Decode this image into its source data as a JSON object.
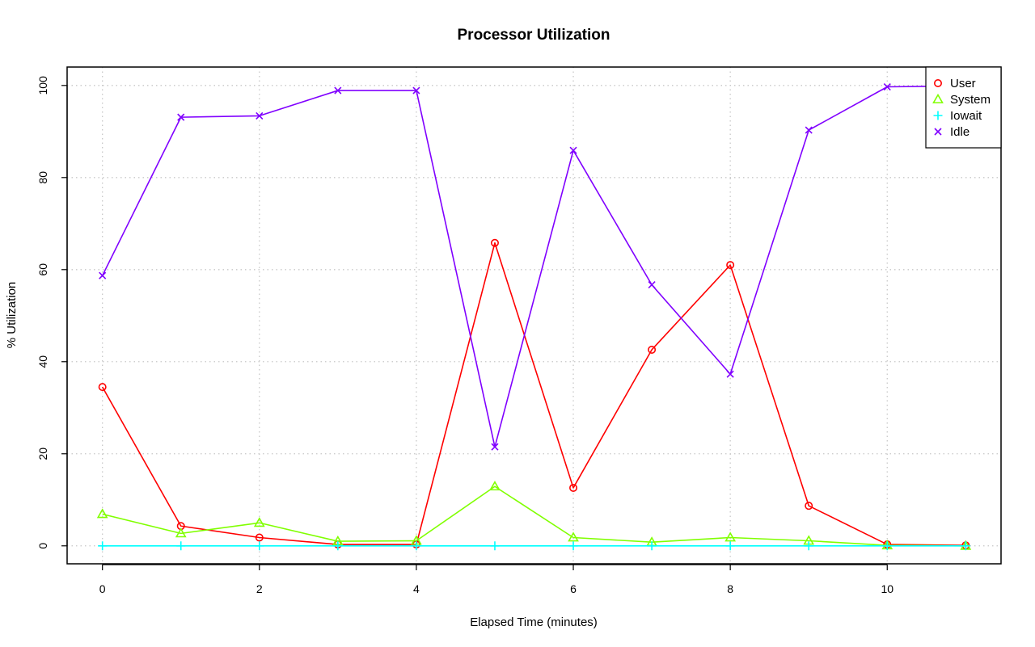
{
  "chart_data": {
    "type": "line",
    "title": "Processor Utilization",
    "xlabel": "Elapsed Time (minutes)",
    "ylabel": "% Utilization",
    "xlim": [
      -0.45,
      11.45
    ],
    "ylim": [
      -3.9,
      104
    ],
    "x_ticks": [
      0,
      2,
      4,
      6,
      8,
      10
    ],
    "y_ticks": [
      0,
      20,
      40,
      60,
      80,
      100
    ],
    "grid": true,
    "legend_position": "top-right",
    "x": [
      0,
      1,
      2,
      3,
      4,
      5,
      6,
      7,
      8,
      9,
      10,
      11
    ],
    "series": [
      {
        "name": "User",
        "color": "#ff0000",
        "marker": "circle",
        "values": [
          34.5,
          4.3,
          1.8,
          0.3,
          0.3,
          65.8,
          12.6,
          42.6,
          61.0,
          8.7,
          0.3,
          0.1
        ]
      },
      {
        "name": "System",
        "color": "#80ff00",
        "marker": "triangle",
        "values": [
          6.9,
          2.7,
          5.0,
          1.0,
          1.1,
          12.9,
          1.8,
          0.8,
          1.8,
          1.1,
          0.1,
          0.0
        ]
      },
      {
        "name": "Iowait",
        "color": "#00ffff",
        "marker": "plus",
        "values": [
          0,
          0,
          0,
          0,
          0,
          0,
          0,
          0,
          0,
          0,
          0,
          0
        ]
      },
      {
        "name": "Idle",
        "color": "#8000ff",
        "marker": "cross",
        "values": [
          58.7,
          93.1,
          93.4,
          98.9,
          98.9,
          21.5,
          85.9,
          56.7,
          37.3,
          90.3,
          99.7,
          99.9
        ]
      }
    ]
  }
}
